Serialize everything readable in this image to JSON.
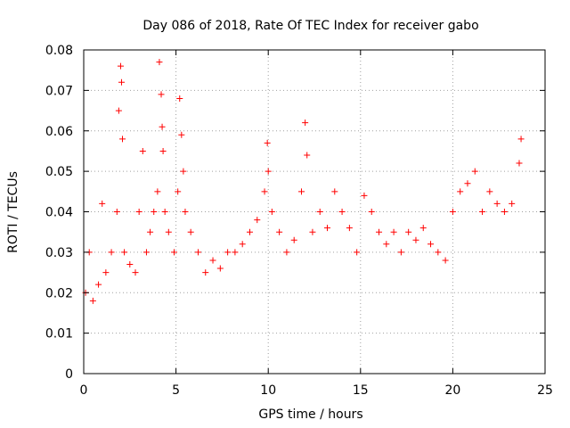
{
  "chart_data": {
    "type": "scatter",
    "title": "Day 086 of 2018, Rate Of TEC Index for receiver gabo",
    "xlabel": "GPS time / hours",
    "ylabel": "ROTI / TECUs",
    "xlim": [
      0,
      25
    ],
    "ylim": [
      0,
      0.08
    ],
    "x_ticks": [
      0,
      5,
      10,
      15,
      20,
      25
    ],
    "y_ticks": [
      0,
      0.01,
      0.02,
      0.03,
      0.04,
      0.05,
      0.06,
      0.07,
      0.08
    ],
    "x_tick_labels": [
      "0",
      "5",
      "10",
      "15",
      "20",
      "25"
    ],
    "y_tick_labels": [
      "0",
      "0.01",
      "0.02",
      "0.03",
      "0.04",
      "0.05",
      "0.06",
      "0.07",
      "0.08"
    ],
    "grid": true,
    "marker": "+",
    "marker_color": "#ff0000",
    "series": [
      {
        "name": "ROTI",
        "x": [
          0.1,
          0.3,
          0.5,
          0.8,
          1.0,
          1.2,
          1.5,
          1.8,
          1.9,
          2.0,
          2.05,
          2.1,
          2.2,
          2.5,
          2.8,
          3.0,
          3.2,
          3.4,
          3.6,
          3.8,
          4.0,
          4.1,
          4.2,
          4.25,
          4.3,
          4.4,
          4.6,
          4.9,
          5.1,
          5.2,
          5.3,
          5.4,
          5.5,
          5.8,
          6.2,
          6.6,
          7.0,
          7.4,
          7.8,
          8.2,
          8.6,
          9.0,
          9.4,
          9.8,
          9.95,
          10.0,
          10.2,
          10.6,
          11.0,
          11.4,
          11.8,
          12.0,
          12.1,
          12.4,
          12.8,
          13.2,
          13.6,
          14.0,
          14.4,
          14.8,
          15.2,
          15.6,
          16.0,
          16.4,
          16.8,
          17.2,
          17.6,
          18.0,
          18.4,
          18.8,
          19.2,
          19.6,
          20.0,
          20.4,
          20.8,
          21.2,
          21.6,
          22.0,
          22.4,
          22.8,
          23.2,
          23.6,
          23.7
        ],
        "y": [
          0.02,
          0.03,
          0.018,
          0.022,
          0.042,
          0.025,
          0.03,
          0.04,
          0.065,
          0.076,
          0.072,
          0.058,
          0.03,
          0.027,
          0.025,
          0.04,
          0.055,
          0.03,
          0.035,
          0.04,
          0.045,
          0.077,
          0.069,
          0.061,
          0.055,
          0.04,
          0.035,
          0.03,
          0.045,
          0.068,
          0.059,
          0.05,
          0.04,
          0.035,
          0.03,
          0.025,
          0.028,
          0.026,
          0.03,
          0.03,
          0.032,
          0.035,
          0.038,
          0.045,
          0.057,
          0.05,
          0.04,
          0.035,
          0.03,
          0.033,
          0.045,
          0.062,
          0.054,
          0.035,
          0.04,
          0.036,
          0.045,
          0.04,
          0.036,
          0.03,
          0.044,
          0.04,
          0.035,
          0.032,
          0.035,
          0.03,
          0.035,
          0.033,
          0.036,
          0.032,
          0.03,
          0.028,
          0.04,
          0.045,
          0.047,
          0.05,
          0.04,
          0.045,
          0.042,
          0.04,
          0.042,
          0.052,
          0.058
        ]
      }
    ]
  }
}
